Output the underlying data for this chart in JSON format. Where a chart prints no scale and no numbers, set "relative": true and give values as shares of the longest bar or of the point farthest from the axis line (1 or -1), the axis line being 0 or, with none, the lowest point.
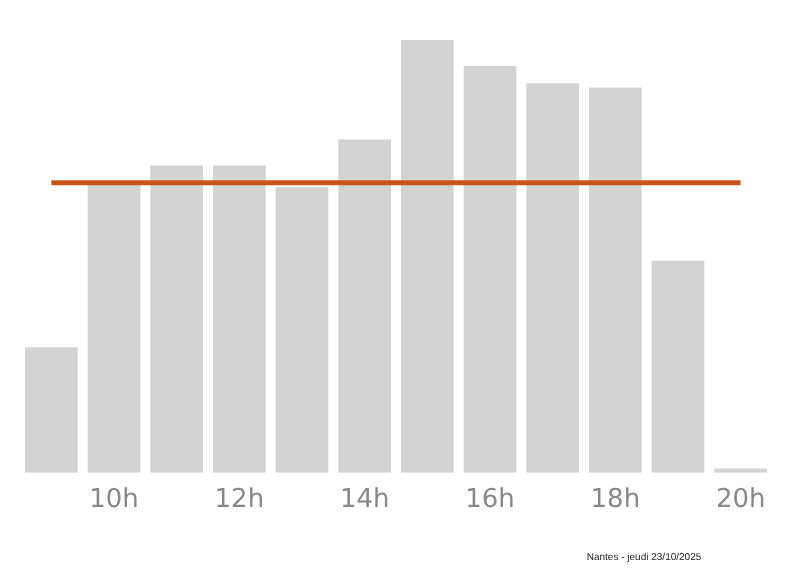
{
  "chart_data": {
    "type": "bar",
    "relative": true,
    "categories": [
      null,
      "10h",
      null,
      "12h",
      null,
      "14h",
      null,
      "16h",
      null,
      "18h",
      null,
      "20h"
    ],
    "values": [
      0.29,
      0.67,
      0.71,
      0.71,
      0.66,
      0.77,
      1,
      0.94,
      0.9,
      0.89,
      0.49,
      0.01
    ],
    "color": "#d3d3d3",
    "ref_lines": [
      {
        "axis": "y",
        "value": 0.67,
        "color": "#c8561a"
      }
    ],
    "annotations": [
      "Nantes - jeudi 23/10/2025"
    ],
    "grid": false,
    "legend": false
  }
}
